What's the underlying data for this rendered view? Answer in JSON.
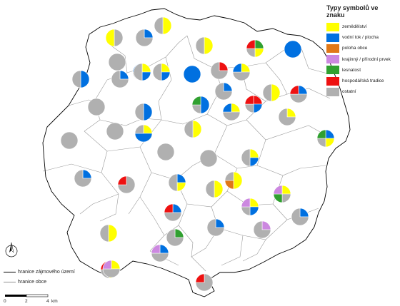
{
  "legend": {
    "title": "Typy symbolů ve znaku",
    "items": [
      {
        "key": "zemedelstvi",
        "label": "zemědělství",
        "color": "#ffff00"
      },
      {
        "key": "voda",
        "label": "vodní tok / plocha",
        "color": "#0070e0"
      },
      {
        "key": "poloha",
        "label": "poloha obce",
        "color": "#e07818"
      },
      {
        "key": "krajinny",
        "label": "krajinný / přírodní prvek",
        "color": "#cc88e0"
      },
      {
        "key": "lesnatost",
        "label": "lesnatost",
        "color": "#30a030"
      },
      {
        "key": "hospodarska",
        "label": "hospodářská tradice",
        "color": "#ee1111"
      },
      {
        "key": "ostatni",
        "label": "ostatní",
        "color": "#b0b0b0"
      }
    ]
  },
  "boundary_legend": [
    {
      "key": "zajmove",
      "label": "hranice zájmového území",
      "color": "#000000"
    },
    {
      "key": "obce",
      "label": "hranice obce",
      "color": "#909090"
    }
  ],
  "scale_bar": {
    "labels": [
      "0",
      "2",
      "4",
      "km"
    ]
  },
  "north_arrow": {
    "label": "north-arrow-icon"
  },
  "pies": [
    {
      "slices": [
        {
          "c": "ostatni",
          "f": 0.5
        },
        {
          "c": "zemedelstvi",
          "f": 0.5
        }
      ]
    },
    {
      "slices": [
        {
          "c": "voda",
          "f": 0.25
        },
        {
          "c": "ostatni",
          "f": 0.75
        }
      ]
    },
    {
      "slices": [
        {
          "c": "zemedelstvi",
          "f": 0.5
        },
        {
          "c": "ostatni",
          "f": 0.5
        }
      ]
    },
    {
      "slices": [
        {
          "c": "ostatni",
          "f": 1
        }
      ]
    },
    {
      "slices": [
        {
          "c": "zemedelstvi",
          "f": 0.5
        },
        {
          "c": "ostatni",
          "f": 0.5
        }
      ]
    },
    {
      "slices": [
        {
          "c": "lesnatost",
          "f": 0.25
        },
        {
          "c": "zemedelstvi",
          "f": 0.25
        },
        {
          "c": "ostatni",
          "f": 0.25
        },
        {
          "c": "hospodarska",
          "f": 0.25
        }
      ]
    },
    {
      "slices": [
        {
          "c": "voda",
          "f": 1
        }
      ]
    },
    {
      "slices": [
        {
          "c": "voda",
          "f": 0.5
        },
        {
          "c": "ostatni",
          "f": 0.5
        }
      ]
    },
    {
      "slices": [
        {
          "c": "voda",
          "f": 0.25
        },
        {
          "c": "ostatni",
          "f": 0.75
        }
      ]
    },
    {
      "slices": [
        {
          "c": "zemedelstvi",
          "f": 0.25
        },
        {
          "c": "ostatni",
          "f": 0.5
        },
        {
          "c": "voda",
          "f": 0.25
        }
      ]
    },
    {
      "slices": [
        {
          "c": "zemedelstvi",
          "f": 0.25
        },
        {
          "c": "voda",
          "f": 0.25
        },
        {
          "c": "ostatni",
          "f": 0.5
        }
      ]
    },
    {
      "slices": [
        {
          "c": "voda",
          "f": 1
        }
      ]
    },
    {
      "slices": [
        {
          "c": "voda",
          "f": 0.25
        },
        {
          "c": "ostatni",
          "f": 0.75
        }
      ]
    },
    {
      "slices": [
        {
          "c": "zemedelstvi",
          "f": 0.25
        },
        {
          "c": "ostatni",
          "f": 0.5
        },
        {
          "c": "voda",
          "f": 0.25
        }
      ]
    },
    {
      "slices": [
        {
          "c": "zemedelstvi",
          "f": 0.5
        },
        {
          "c": "ostatni",
          "f": 0.5
        }
      ]
    },
    {
      "slices": [
        {
          "c": "hospodarska",
          "f": 0.25
        },
        {
          "c": "ostatni",
          "f": 0.75
        }
      ]
    },
    {
      "slices": [
        {
          "c": "voda",
          "f": 0.25
        },
        {
          "c": "ostatni",
          "f": 0.5
        },
        {
          "c": "hospodarska",
          "f": 0.25
        }
      ]
    },
    {
      "slices": [
        {
          "c": "ostatni",
          "f": 1
        }
      ]
    },
    {
      "slices": [
        {
          "c": "voda",
          "f": 0.5
        },
        {
          "c": "ostatni",
          "f": 0.5
        }
      ]
    },
    {
      "slices": [
        {
          "c": "voda",
          "f": 0.5
        },
        {
          "c": "ostatni",
          "f": 0.25
        },
        {
          "c": "lesnatost",
          "f": 0.25
        }
      ]
    },
    {
      "slices": [
        {
          "c": "zemedelstvi",
          "f": 0.25
        },
        {
          "c": "ostatni",
          "f": 0.5
        },
        {
          "c": "voda",
          "f": 0.25
        }
      ]
    },
    {
      "slices": [
        {
          "c": "hospodarska",
          "f": 0.25
        },
        {
          "c": "voda",
          "f": 0.25
        },
        {
          "c": "ostatni",
          "f": 0.25
        },
        {
          "c": "hospodarska",
          "f": 0.25
        }
      ]
    },
    {
      "slices": [
        {
          "c": "zemedelstvi",
          "f": 0.25
        },
        {
          "c": "ostatni",
          "f": 0.75
        }
      ]
    },
    {
      "slices": [
        {
          "c": "zemedelstvi",
          "f": 0.25
        },
        {
          "c": "voda",
          "f": 0.5
        },
        {
          "c": "ostatni",
          "f": 0.25
        }
      ]
    },
    {
      "slices": [
        {
          "c": "ostatni",
          "f": 1
        }
      ]
    },
    {
      "slices": [
        {
          "c": "voda",
          "f": 0.25
        },
        {
          "c": "zemedelstvi",
          "f": 0.25
        },
        {
          "c": "ostatni",
          "f": 0.25
        },
        {
          "c": "lesnatost",
          "f": 0.25
        }
      ]
    },
    {
      "slices": [
        {
          "c": "zemedelstvi",
          "f": 0.5
        },
        {
          "c": "ostatni",
          "f": 0.5
        }
      ]
    },
    {
      "slices": [
        {
          "c": "ostatni",
          "f": 1
        }
      ]
    },
    {
      "slices": [
        {
          "c": "ostatni",
          "f": 1
        }
      ]
    },
    {
      "slices": [
        {
          "c": "ostatni",
          "f": 1
        }
      ]
    },
    {
      "slices": [
        {
          "c": "voda",
          "f": 0.25
        },
        {
          "c": "zemedelstvi",
          "f": 0.25
        },
        {
          "c": "ostatni",
          "f": 0.5
        }
      ]
    },
    {
      "slices": [
        {
          "c": "zemedelstvi",
          "f": 0.25
        },
        {
          "c": "voda",
          "f": 0.25
        },
        {
          "c": "ostatni",
          "f": 0.5
        }
      ]
    },
    {
      "slices": [
        {
          "c": "zemedelstvi",
          "f": 0.5
        },
        {
          "c": "ostatni",
          "f": 0.5
        }
      ]
    },
    {
      "slices": [
        {
          "c": "zemedelstvi",
          "f": 0.5
        },
        {
          "c": "poloha",
          "f": 0.25
        },
        {
          "c": "ostatni",
          "f": 0.25
        }
      ]
    },
    {
      "slices": [
        {
          "c": "ostatni",
          "f": 0.75
        },
        {
          "c": "hospodarska",
          "f": 0.25
        }
      ]
    },
    {
      "slices": [
        {
          "c": "voda",
          "f": 0.25
        },
        {
          "c": "ostatni",
          "f": 0.75
        }
      ]
    },
    {
      "slices": [
        {
          "c": "zemedelstvi",
          "f": 0.5
        },
        {
          "c": "ostatni",
          "f": 0.5
        }
      ]
    },
    {
      "slices": [
        {
          "c": "zemedelstvi",
          "f": 0.25
        },
        {
          "c": "voda",
          "f": 0.25
        },
        {
          "c": "ostatni",
          "f": 0.5
        }
      ]
    },
    {
      "slices": [
        {
          "c": "zemedelstvi",
          "f": 0.25
        },
        {
          "c": "ostatni",
          "f": 0.25
        },
        {
          "c": "lesnatost",
          "f": 0.25
        },
        {
          "c": "krajinny",
          "f": 0.25
        }
      ]
    },
    {
      "slices": [
        {
          "c": "voda",
          "f": 0.25
        },
        {
          "c": "ostatni",
          "f": 0.5
        },
        {
          "c": "hospodarska",
          "f": 0.25
        }
      ]
    },
    {
      "slices": [
        {
          "c": "zemedelstvi",
          "f": 0.25
        },
        {
          "c": "voda",
          "f": 0.25
        },
        {
          "c": "ostatni",
          "f": 0.25
        },
        {
          "c": "krajinny",
          "f": 0.25
        }
      ]
    },
    {
      "slices": [
        {
          "c": "voda",
          "f": 0.25
        },
        {
          "c": "ostatni",
          "f": 0.75
        }
      ]
    },
    {
      "slices": [
        {
          "c": "voda",
          "f": 0.25
        },
        {
          "c": "ostatni",
          "f": 0.75
        }
      ]
    },
    {
      "slices": [
        {
          "c": "zemedelstvi",
          "f": 0.5
        },
        {
          "c": "ostatni",
          "f": 0.25
        },
        {
          "c": "hospodarska",
          "f": 0.25
        }
      ]
    },
    {
      "slices": [
        {
          "c": "lesnatost",
          "f": 0.25
        },
        {
          "c": "ostatni",
          "f": 0.75
        }
      ]
    },
    {
      "slices": [
        {
          "c": "krajinny",
          "f": 0.25
        },
        {
          "c": "ostatni",
          "f": 0.75
        }
      ]
    },
    {
      "slices": [
        {
          "c": "voda",
          "f": 0.25
        },
        {
          "c": "ostatni",
          "f": 0.5
        },
        {
          "c": "krajinny",
          "f": 0.25
        }
      ]
    },
    {
      "slices": [
        {
          "c": "zemedelstvi",
          "f": 0.25
        },
        {
          "c": "ostatni",
          "f": 0.5
        },
        {
          "c": "krajinny",
          "f": 0.25
        }
      ]
    },
    {
      "slices": [
        {
          "c": "ostatni",
          "f": 0.75
        },
        {
          "c": "hospodarska",
          "f": 0.25
        }
      ]
    }
  ]
}
